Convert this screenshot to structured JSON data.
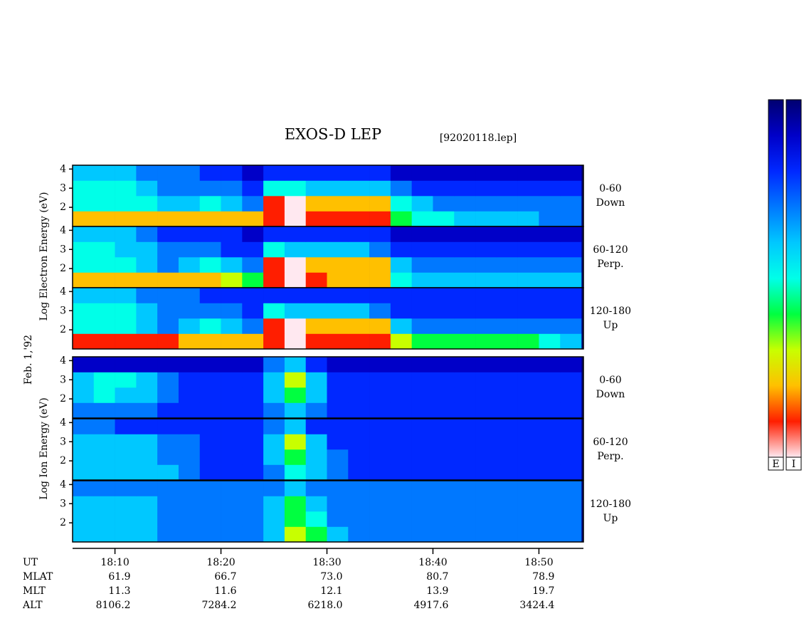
{
  "chart_data": {
    "type": "heatmap",
    "title": "EXOS-D LEP",
    "subtitle": "[92020118.lep]",
    "date_label": "Feb. 1,'92",
    "xlabel": "UT",
    "xlim": [
      1086,
      1134.2
    ],
    "xticks": [
      {
        "value": 1090,
        "label": "18:10"
      },
      {
        "value": 1100,
        "label": "18:20"
      },
      {
        "value": 1110,
        "label": "18:30"
      },
      {
        "value": 1120,
        "label": "18:40"
      },
      {
        "value": 1130,
        "label": "18:50"
      }
    ],
    "ylim": [
      1,
      4.2
    ],
    "yticks": [
      2,
      3,
      4
    ],
    "xbins": [
      1086,
      1088,
      1090,
      1092,
      1094,
      1096,
      1098,
      1100,
      1102,
      1104,
      1106,
      1108,
      1110,
      1112,
      1114,
      1116,
      1118,
      1120,
      1122,
      1124,
      1126,
      1128,
      1130,
      1132,
      1134
    ],
    "ybins": [
      1,
      1.8,
      2.6,
      3.4,
      4.2
    ],
    "colorscale": [
      "#000070",
      "#0000c8",
      "#0028ff",
      "#0078ff",
      "#00c8ff",
      "#00ffe8",
      "#00ff40",
      "#c8ff00",
      "#ffc000",
      "#ff1e00",
      "#ffe8f0"
    ],
    "colorbar_labels": [
      "E",
      "I"
    ],
    "groups": [
      {
        "ylabel": "Log  Electron  Energy (eV)",
        "panels": [
          {
            "label": [
              "0-60",
              "Down"
            ],
            "z": [
              [
                8,
                8,
                8,
                8,
                8,
                8,
                8,
                8,
                8,
                9,
                10,
                9,
                9,
                9,
                9,
                6,
                5,
                5,
                4,
                4,
                4,
                4,
                3,
                3
              ],
              [
                5,
                5,
                5,
                5,
                4,
                4,
                5,
                4,
                3,
                9,
                10,
                8,
                8,
                8,
                8,
                5,
                4,
                3,
                3,
                3,
                3,
                3,
                3,
                3
              ],
              [
                5,
                5,
                5,
                4,
                3,
                3,
                3,
                3,
                2,
                5,
                5,
                4,
                4,
                4,
                4,
                3,
                2,
                2,
                2,
                2,
                2,
                2,
                2,
                2
              ],
              [
                4,
                4,
                4,
                3,
                3,
                3,
                2,
                2,
                1,
                2,
                2,
                2,
                2,
                2,
                2,
                1,
                1,
                1,
                1,
                1,
                1,
                1,
                1,
                1
              ]
            ]
          },
          {
            "label": [
              "60-120",
              "Perp."
            ],
            "z": [
              [
                8,
                8,
                8,
                8,
                8,
                8,
                8,
                7,
                6,
                9,
                10,
                9,
                8,
                8,
                8,
                5,
                4,
                4,
                4,
                4,
                4,
                4,
                4,
                4
              ],
              [
                5,
                5,
                5,
                4,
                3,
                4,
                5,
                4,
                3,
                9,
                10,
                8,
                8,
                8,
                8,
                4,
                3,
                3,
                3,
                3,
                3,
                3,
                3,
                3
              ],
              [
                5,
                5,
                4,
                4,
                3,
                3,
                3,
                2,
                2,
                5,
                4,
                4,
                4,
                4,
                3,
                2,
                2,
                2,
                2,
                2,
                2,
                2,
                2,
                2
              ],
              [
                4,
                4,
                4,
                3,
                2,
                2,
                2,
                2,
                1,
                2,
                2,
                2,
                2,
                2,
                2,
                1,
                1,
                1,
                1,
                1,
                1,
                1,
                1,
                1
              ]
            ]
          },
          {
            "label": [
              "120-180",
              "Up"
            ],
            "z": [
              [
                9,
                9,
                9,
                9,
                9,
                8,
                8,
                8,
                8,
                9,
                10,
                9,
                9,
                9,
                9,
                7,
                6,
                6,
                6,
                6,
                6,
                6,
                5,
                4
              ],
              [
                5,
                5,
                5,
                4,
                3,
                4,
                5,
                4,
                3,
                9,
                10,
                8,
                8,
                8,
                8,
                4,
                3,
                3,
                3,
                3,
                3,
                3,
                3,
                3
              ],
              [
                5,
                5,
                5,
                4,
                3,
                3,
                3,
                3,
                2,
                5,
                4,
                4,
                4,
                4,
                3,
                2,
                2,
                2,
                2,
                2,
                2,
                2,
                2,
                2
              ],
              [
                4,
                4,
                4,
                3,
                3,
                3,
                2,
                2,
                2,
                2,
                2,
                2,
                2,
                2,
                2,
                2,
                2,
                2,
                2,
                2,
                2,
                2,
                2,
                2
              ]
            ]
          }
        ]
      },
      {
        "ylabel": "Log  Ion  Energy (eV)",
        "panels": [
          {
            "label": [
              "0-60",
              "Down"
            ],
            "z": [
              [
                3,
                3,
                3,
                3,
                2,
                2,
                2,
                2,
                2,
                3,
                4,
                3,
                2,
                2,
                2,
                2,
                2,
                2,
                2,
                2,
                2,
                2,
                2,
                2
              ],
              [
                4,
                5,
                4,
                4,
                3,
                2,
                2,
                2,
                2,
                4,
                6,
                4,
                2,
                2,
                2,
                2,
                2,
                2,
                2,
                2,
                2,
                2,
                2,
                2
              ],
              [
                4,
                5,
                5,
                4,
                3,
                2,
                2,
                2,
                2,
                4,
                7,
                4,
                2,
                2,
                2,
                2,
                2,
                2,
                2,
                2,
                2,
                2,
                2,
                2
              ],
              [
                1,
                1,
                1,
                1,
                1,
                1,
                1,
                1,
                1,
                3,
                4,
                2,
                1,
                1,
                1,
                1,
                1,
                1,
                1,
                1,
                1,
                1,
                1,
                1
              ]
            ]
          },
          {
            "label": [
              "60-120",
              "Perp."
            ],
            "z": [
              [
                4,
                4,
                4,
                4,
                4,
                3,
                2,
                2,
                2,
                3,
                5,
                4,
                3,
                2,
                2,
                2,
                2,
                2,
                2,
                2,
                2,
                2,
                2,
                2
              ],
              [
                4,
                4,
                4,
                4,
                3,
                3,
                2,
                2,
                2,
                4,
                6,
                4,
                3,
                2,
                2,
                2,
                2,
                2,
                2,
                2,
                2,
                2,
                2,
                2
              ],
              [
                4,
                4,
                4,
                4,
                3,
                3,
                2,
                2,
                2,
                4,
                7,
                4,
                2,
                2,
                2,
                2,
                2,
                2,
                2,
                2,
                2,
                2,
                2,
                2
              ],
              [
                3,
                3,
                2,
                2,
                2,
                2,
                2,
                2,
                2,
                3,
                4,
                2,
                2,
                2,
                2,
                2,
                2,
                2,
                2,
                2,
                2,
                2,
                2,
                2
              ]
            ]
          },
          {
            "label": [
              "120-180",
              "Up"
            ],
            "z": [
              [
                4,
                4,
                4,
                4,
                3,
                3,
                3,
                3,
                3,
                4,
                7,
                6,
                4,
                3,
                3,
                3,
                3,
                3,
                3,
                3,
                3,
                3,
                3,
                3
              ],
              [
                4,
                4,
                4,
                4,
                3,
                3,
                3,
                3,
                3,
                4,
                6,
                5,
                3,
                3,
                3,
                3,
                3,
                3,
                3,
                3,
                3,
                3,
                3,
                3
              ],
              [
                4,
                4,
                4,
                4,
                3,
                3,
                3,
                3,
                3,
                4,
                6,
                4,
                3,
                3,
                3,
                3,
                3,
                3,
                3,
                3,
                3,
                3,
                3,
                3
              ],
              [
                3,
                3,
                3,
                3,
                3,
                3,
                3,
                3,
                3,
                3,
                4,
                3,
                3,
                3,
                3,
                3,
                3,
                3,
                3,
                3,
                3,
                3,
                3,
                3
              ]
            ]
          }
        ]
      }
    ],
    "ephemeris": [
      {
        "name": "MLAT",
        "values": [
          "61.9",
          "66.7",
          "73.0",
          "80.7",
          "78.9"
        ]
      },
      {
        "name": "MLT",
        "values": [
          "11.3",
          "11.6",
          "12.1",
          "13.9",
          "19.7"
        ]
      },
      {
        "name": "ALT",
        "values": [
          "8106.2",
          "7284.2",
          "6218.0",
          "4917.6",
          "3424.4"
        ]
      }
    ]
  }
}
